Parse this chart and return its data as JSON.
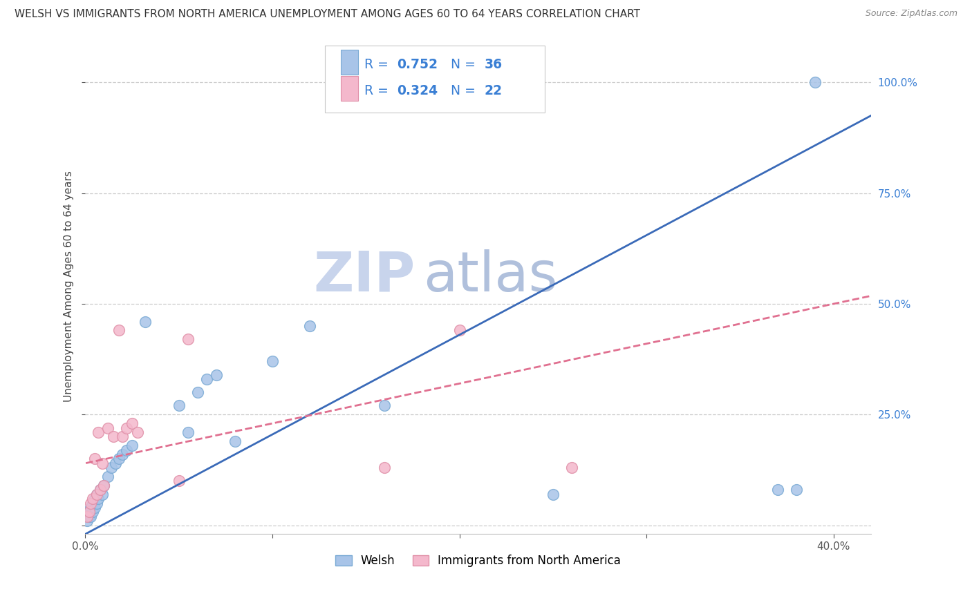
{
  "title": "WELSH VS IMMIGRANTS FROM NORTH AMERICA UNEMPLOYMENT AMONG AGES 60 TO 64 YEARS CORRELATION CHART",
  "source": "Source: ZipAtlas.com",
  "ylabel": "Unemployment Among Ages 60 to 64 years",
  "xlim": [
    0.0,
    0.42
  ],
  "ylim": [
    -0.02,
    1.1
  ],
  "background_color": "#ffffff",
  "grid_color": "#cccccc",
  "watermark_zip": "ZIP",
  "watermark_atlas": "atlas",
  "watermark_zip_color": "#c8d4e8",
  "watermark_atlas_color": "#b8c8e0",
  "welsh_color": "#a8c4e8",
  "welsh_edge_color": "#7aaad4",
  "immigrants_color": "#f4b8cc",
  "immigrants_edge_color": "#e090a8",
  "welsh_R": 0.752,
  "welsh_N": 36,
  "immigrants_R": 0.324,
  "immigrants_N": 22,
  "legend_text_color": "#3a7fd4",
  "legend_label_welsh": "Welsh",
  "legend_label_immigrants": "Immigrants from North America",
  "welsh_line_color": "#3a6ab8",
  "immigrants_line_color": "#e07090",
  "marker_size": 130,
  "welsh_x": [
    0.001,
    0.002,
    0.002,
    0.003,
    0.003,
    0.004,
    0.004,
    0.005,
    0.005,
    0.006,
    0.006,
    0.007,
    0.008,
    0.009,
    0.01,
    0.012,
    0.014,
    0.016,
    0.018,
    0.02,
    0.022,
    0.025,
    0.032,
    0.05,
    0.055,
    0.06,
    0.065,
    0.07,
    0.08,
    0.1,
    0.12,
    0.16,
    0.25,
    0.37,
    0.38,
    0.39
  ],
  "welsh_y": [
    0.01,
    0.02,
    0.03,
    0.02,
    0.04,
    0.03,
    0.05,
    0.04,
    0.06,
    0.05,
    0.07,
    0.06,
    0.08,
    0.07,
    0.09,
    0.11,
    0.13,
    0.14,
    0.15,
    0.16,
    0.17,
    0.18,
    0.46,
    0.27,
    0.21,
    0.3,
    0.33,
    0.34,
    0.19,
    0.37,
    0.45,
    0.27,
    0.07,
    0.08,
    0.08,
    1.0
  ],
  "immigrants_x": [
    0.001,
    0.002,
    0.003,
    0.004,
    0.005,
    0.006,
    0.007,
    0.008,
    0.009,
    0.01,
    0.012,
    0.015,
    0.018,
    0.02,
    0.022,
    0.025,
    0.028,
    0.05,
    0.055,
    0.16,
    0.2,
    0.26
  ],
  "immigrants_y": [
    0.02,
    0.03,
    0.05,
    0.06,
    0.15,
    0.07,
    0.21,
    0.08,
    0.14,
    0.09,
    0.22,
    0.2,
    0.44,
    0.2,
    0.22,
    0.23,
    0.21,
    0.1,
    0.42,
    0.13,
    0.44,
    0.13
  ],
  "welsh_line_x0": 0.0,
  "welsh_line_y0": -0.02,
  "welsh_line_x1": 0.4,
  "welsh_line_y1": 0.88,
  "immigrants_line_x0": 0.0,
  "immigrants_line_y0": 0.14,
  "immigrants_line_x1": 0.4,
  "immigrants_line_y1": 0.5
}
